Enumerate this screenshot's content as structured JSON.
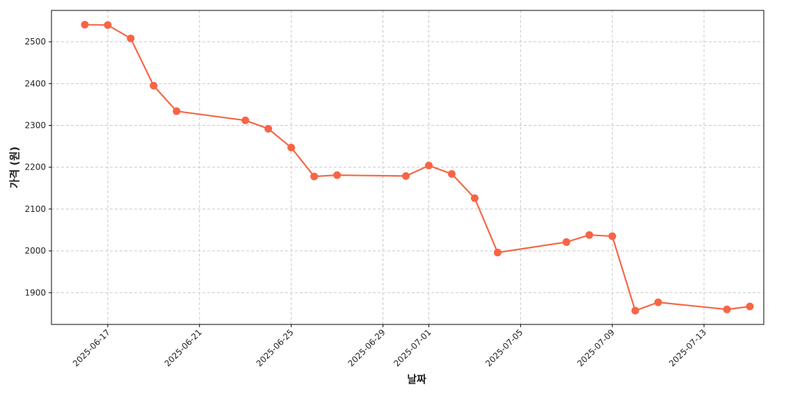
{
  "chart_data": {
    "type": "line",
    "x_label": "날짜",
    "y_label": "가격 (원)",
    "x": [
      "2025-06-16",
      "2025-06-17",
      "2025-06-18",
      "2025-06-19",
      "2025-06-20",
      "2025-06-23",
      "2025-06-24",
      "2025-06-25",
      "2025-06-26",
      "2025-06-27",
      "2025-06-30",
      "2025-07-01",
      "2025-07-02",
      "2025-07-03",
      "2025-07-04",
      "2025-07-07",
      "2025-07-08",
      "2025-07-09",
      "2025-07-10",
      "2025-07-11",
      "2025-07-14",
      "2025-07-15"
    ],
    "values": [
      2541,
      2540,
      2508,
      2395,
      2334,
      2312,
      2292,
      2247,
      2178,
      2181,
      2179,
      2204,
      2184,
      2126,
      1996,
      2021,
      2038,
      2035,
      1857,
      1877,
      1860,
      1867
    ],
    "color": "#f76545",
    "xlim": [
      "2025-06-14T13:05:00Z",
      "2025-07-15T14:33:00Z"
    ],
    "xticks": [
      "2025-06-17",
      "2025-06-21",
      "2025-06-25",
      "2025-06-29",
      "2025-07-01",
      "2025-07-05",
      "2025-07-09",
      "2025-07-13"
    ],
    "ylim": [
      1824,
      2575
    ],
    "yticks": [
      1900,
      2000,
      2100,
      2200,
      2300,
      2400,
      2500
    ],
    "grid": true
  }
}
